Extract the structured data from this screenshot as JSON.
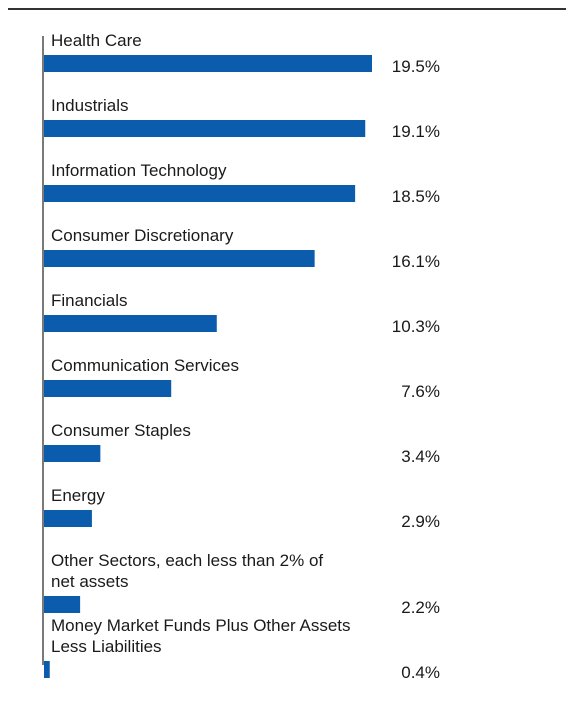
{
  "chart_data": {
    "type": "bar",
    "orientation": "horizontal",
    "categories": [
      [
        "Health Care"
      ],
      [
        "Industrials"
      ],
      [
        "Information Technology"
      ],
      [
        "Consumer Discretionary"
      ],
      [
        "Financials"
      ],
      [
        "Communication Services"
      ],
      [
        "Consumer Staples"
      ],
      [
        "Energy"
      ],
      [
        "Other Sectors, each less than 2% of",
        "net assets"
      ],
      [
        "Money Market Funds Plus Other Assets",
        "Less Liabilities"
      ]
    ],
    "values": [
      19.5,
      19.1,
      18.5,
      16.1,
      10.3,
      7.6,
      3.4,
      2.9,
      2.2,
      0.4
    ],
    "value_labels": [
      "19.5%",
      "19.1%",
      "18.5%",
      "16.1%",
      "10.3%",
      "7.6%",
      "3.4%",
      "2.9%",
      "2.2%",
      "0.4%"
    ],
    "title": "",
    "xlabel": "",
    "ylabel": "",
    "grid": false,
    "bar_color": "#0b5cad"
  }
}
